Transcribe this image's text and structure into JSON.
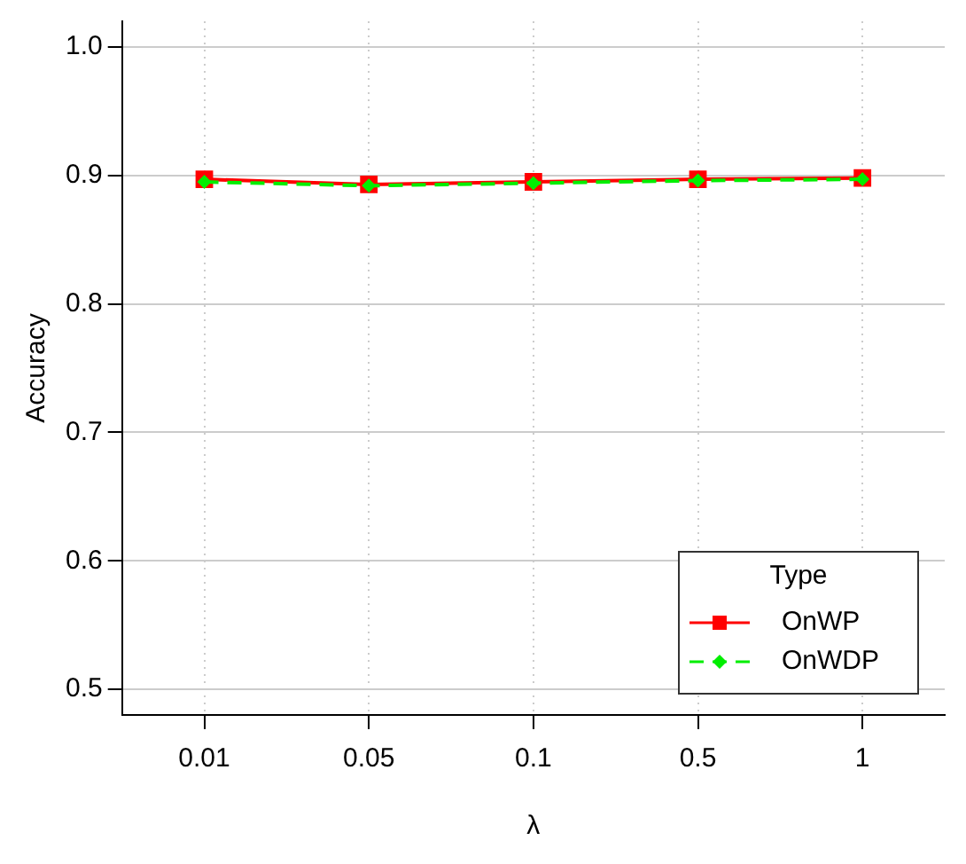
{
  "chart_data": {
    "type": "line",
    "xlabel": "λ",
    "ylabel": "Accuracy",
    "legend_title": "Type",
    "categories": [
      "0.01",
      "0.05",
      "0.1",
      "0.5",
      "1"
    ],
    "series": [
      {
        "name": "OnWP",
        "color": "#ff0000",
        "values": [
          0.897,
          0.893,
          0.895,
          0.897,
          0.898
        ],
        "marker": "square",
        "line_style": "solid"
      },
      {
        "name": "OnWDP",
        "color": "#00ee00",
        "values": [
          0.895,
          0.892,
          0.894,
          0.896,
          0.897
        ],
        "marker": "diamond",
        "line_style": "dashed"
      }
    ],
    "ylim": [
      0.48,
      1.02
    ],
    "yticks": [
      0.5,
      0.6,
      0.7,
      0.8,
      0.9,
      {
        "value": 1,
        "label": "1.0"
      }
    ],
    "grid": true,
    "legend": "bottom right"
  }
}
